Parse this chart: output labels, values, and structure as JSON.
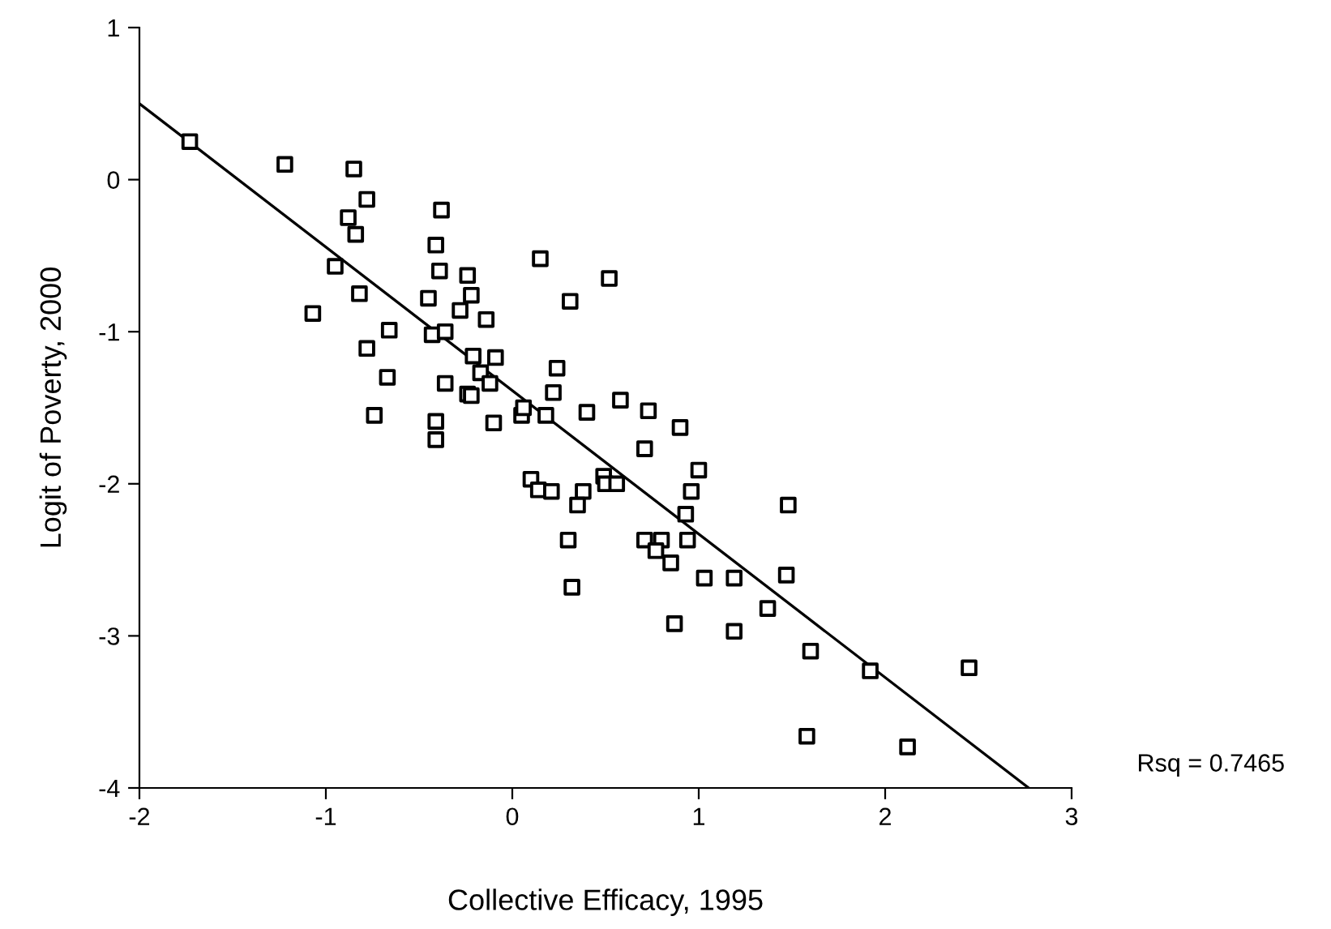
{
  "chart_data": {
    "type": "scatter",
    "xlabel": "Collective Efficacy, 1995",
    "ylabel": "Logit of Poverty, 2000",
    "xlim": [
      -2,
      3
    ],
    "xticks": [
      -2,
      -1,
      0,
      1,
      2,
      3
    ],
    "ylim": [
      -4,
      1
    ],
    "yticks": [
      -4,
      -3,
      -2,
      -1,
      0,
      1
    ],
    "grid": false,
    "legend": false,
    "marker": "square",
    "annotations": [
      "Rsq = 0.7465"
    ],
    "series": [
      {
        "color": "#000000",
        "x": [
          -1.73,
          -1.22,
          -0.85,
          -0.78,
          -0.88,
          -0.84,
          -0.95,
          -1.07,
          -0.82,
          -0.78,
          -0.66,
          -0.67,
          -0.74,
          -0.38,
          -0.41,
          -0.39,
          -0.45,
          -0.24,
          -0.22,
          -0.28,
          -0.43,
          -0.36,
          -0.14,
          -0.21,
          -0.17,
          -0.09,
          -0.36,
          -0.24,
          -0.22,
          -0.12,
          -0.41,
          -0.41,
          -0.1,
          0.05,
          0.06,
          0.18,
          0.15,
          0.31,
          0.52,
          0.24,
          0.22,
          0.4,
          0.58,
          0.73,
          0.9,
          0.71,
          0.1,
          0.14,
          0.21,
          0.38,
          0.49,
          0.5,
          0.56,
          0.35,
          0.3,
          0.32,
          0.71,
          0.8,
          0.77,
          0.85,
          0.93,
          0.96,
          1.0,
          0.94,
          0.87,
          1.03,
          1.19,
          1.19,
          1.37,
          1.47,
          1.48,
          1.6,
          1.58,
          1.92,
          2.12,
          2.45
        ],
        "values": [
          0.25,
          0.1,
          0.07,
          -0.13,
          -0.25,
          -0.36,
          -0.57,
          -0.88,
          -0.75,
          -1.11,
          -0.99,
          -1.3,
          -1.55,
          -0.2,
          -0.43,
          -0.6,
          -0.78,
          -0.63,
          -0.76,
          -0.86,
          -1.02,
          -1.0,
          -0.92,
          -1.16,
          -1.27,
          -1.17,
          -1.34,
          -1.41,
          -1.42,
          -1.34,
          -1.59,
          -1.71,
          -1.6,
          -1.55,
          -1.5,
          -1.55,
          -0.52,
          -0.8,
          -0.65,
          -1.24,
          -1.4,
          -1.53,
          -1.45,
          -1.52,
          -1.63,
          -1.77,
          -1.97,
          -2.04,
          -2.05,
          -2.05,
          -1.95,
          -2.0,
          -2.0,
          -2.14,
          -2.37,
          -2.68,
          -2.37,
          -2.37,
          -2.44,
          -2.52,
          -2.2,
          -2.05,
          -1.91,
          -2.37,
          -2.92,
          -2.62,
          -2.62,
          -2.97,
          -2.82,
          -2.6,
          -2.14,
          -3.1,
          -3.66,
          -3.23,
          -3.73,
          -3.21
        ]
      },
      {
        "type": "line",
        "color": "#000000",
        "marker": "none",
        "line_style": "solid",
        "x": [
          -2,
          2.77
        ],
        "values": [
          0.5,
          -4
        ]
      }
    ]
  }
}
